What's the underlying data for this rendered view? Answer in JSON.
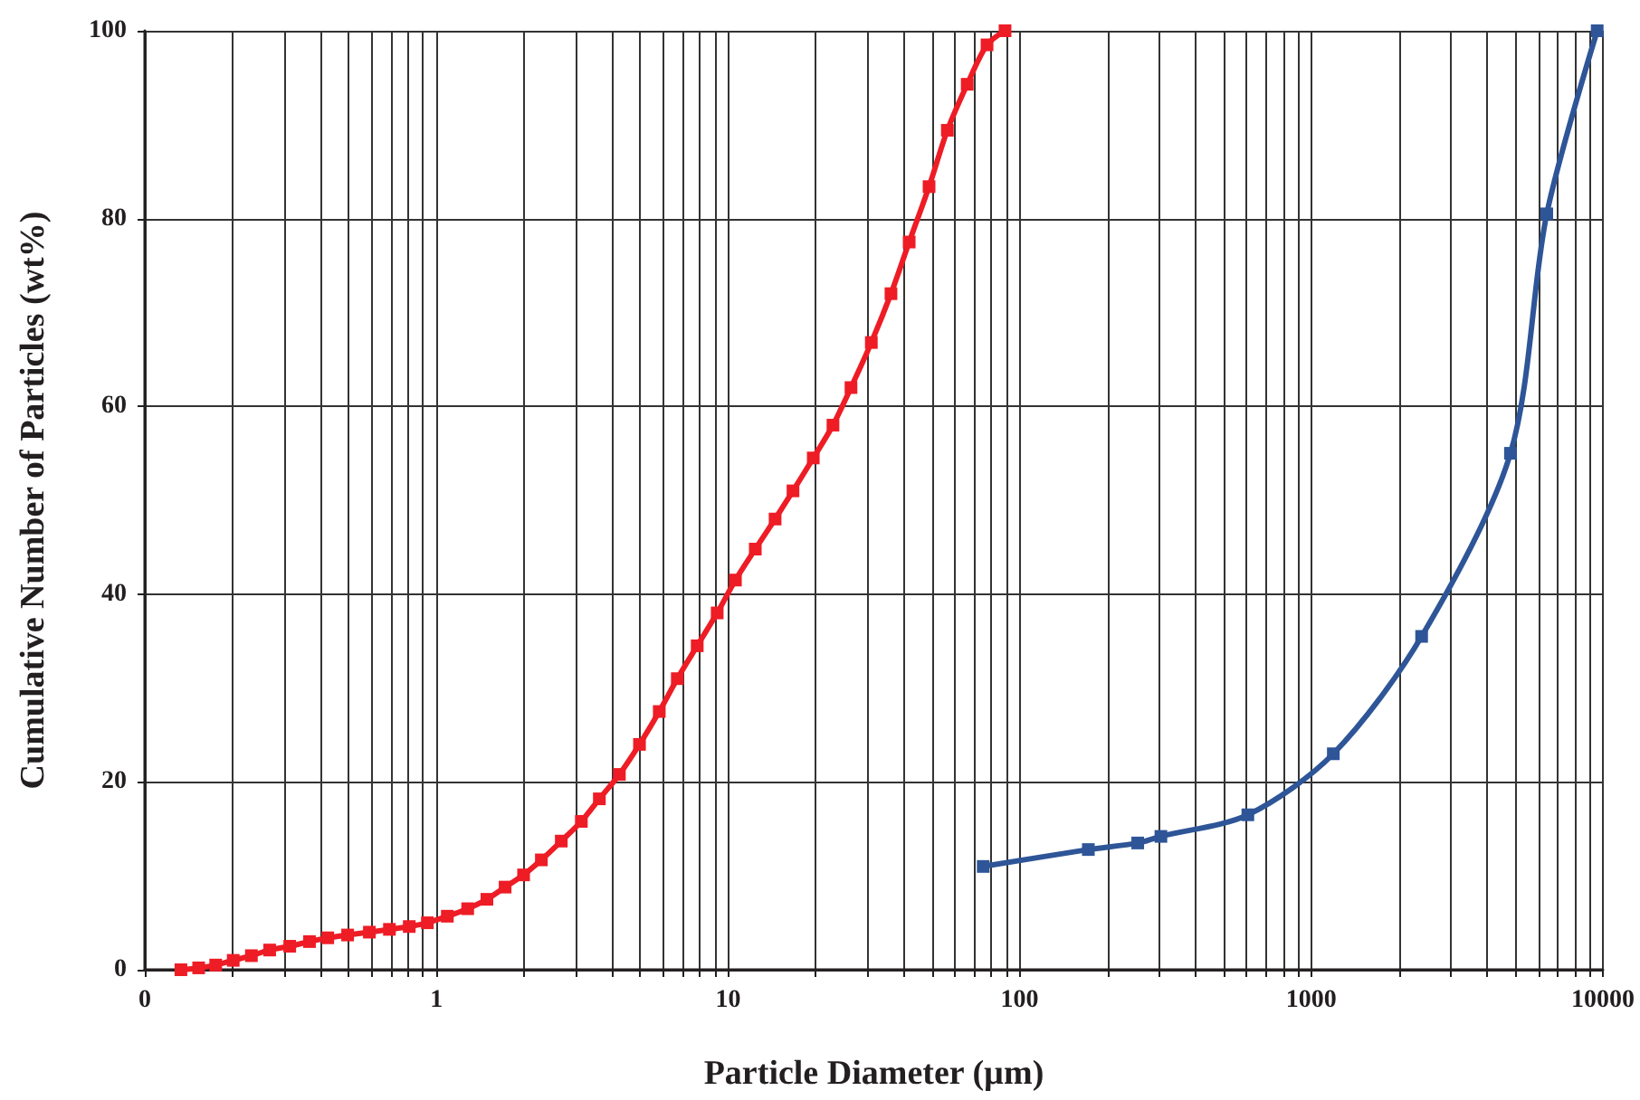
{
  "chart_data": {
    "type": "line",
    "xlabel": "Particle Diameter (µm)",
    "ylabel": "Cumulative Number of Particles (wt%)",
    "log": "x",
    "grid": true,
    "marker": "square",
    "line_style": "solid",
    "xlim": [
      0.1,
      10000
    ],
    "ylim": [
      0,
      100
    ],
    "yticks": [
      0,
      20,
      40,
      60,
      80,
      100
    ],
    "xticks": [
      {
        "value": 0.1,
        "label": "0"
      },
      {
        "value": 0.2,
        "label": null
      },
      {
        "value": 0.3,
        "label": null
      },
      {
        "value": 0.4,
        "label": null
      },
      {
        "value": 0.5,
        "label": null
      },
      {
        "value": 0.6,
        "label": null
      },
      {
        "value": 0.7,
        "label": null
      },
      {
        "value": 0.8,
        "label": null
      },
      {
        "value": 0.9,
        "label": null
      },
      1,
      {
        "value": 2,
        "label": null
      },
      {
        "value": 3,
        "label": null
      },
      {
        "value": 4,
        "label": null
      },
      {
        "value": 5,
        "label": null
      },
      {
        "value": 6,
        "label": null
      },
      {
        "value": 7,
        "label": null
      },
      {
        "value": 8,
        "label": null
      },
      {
        "value": 9,
        "label": null
      },
      10,
      {
        "value": 20,
        "label": null
      },
      {
        "value": 30,
        "label": null
      },
      {
        "value": 40,
        "label": null
      },
      {
        "value": 50,
        "label": null
      },
      {
        "value": 60,
        "label": null
      },
      {
        "value": 70,
        "label": null
      },
      {
        "value": 80,
        "label": null
      },
      {
        "value": 90,
        "label": null
      },
      100,
      {
        "value": 200,
        "label": null
      },
      {
        "value": 300,
        "label": null
      },
      {
        "value": 400,
        "label": null
      },
      {
        "value": 500,
        "label": null
      },
      {
        "value": 600,
        "label": null
      },
      {
        "value": 700,
        "label": null
      },
      {
        "value": 800,
        "label": null
      },
      {
        "value": 900,
        "label": null
      },
      1000,
      {
        "value": 2000,
        "label": null
      },
      {
        "value": 3000,
        "label": null
      },
      {
        "value": 4000,
        "label": null
      },
      {
        "value": 5000,
        "label": null
      },
      {
        "value": 6000,
        "label": null
      },
      {
        "value": 7000,
        "label": null
      },
      {
        "value": 8000,
        "label": null
      },
      {
        "value": 9000,
        "label": null
      },
      10000
    ],
    "series": [
      {
        "color": "#ee1c25",
        "x": [
          0.133,
          0.153,
          0.175,
          0.201,
          0.232,
          0.268,
          0.314,
          0.367,
          0.424,
          0.496,
          0.589,
          0.69,
          0.807,
          0.931,
          1.09,
          1.28,
          1.49,
          1.72,
          1.99,
          2.29,
          2.68,
          3.14,
          3.62,
          4.24,
          4.97,
          5.81,
          6.7,
          7.84,
          9.18,
          10.6,
          12.4,
          14.5,
          16.7,
          19.6,
          22.9,
          26.4,
          31,
          36.2,
          41.8,
          48.9,
          56.5,
          66.1,
          77.3,
          89.1
        ],
        "values": [
          0,
          0.2,
          0.5,
          1,
          1.5,
          2.1,
          2.5,
          3,
          3.4,
          3.7,
          4,
          4.3,
          4.6,
          5,
          5.7,
          6.5,
          7.5,
          8.8,
          10.1,
          11.7,
          13.7,
          15.8,
          18.2,
          20.8,
          24,
          27.5,
          31,
          34.5,
          38,
          41.5,
          44.8,
          48,
          51,
          54.5,
          58,
          62,
          66.8,
          72,
          77.5,
          83.4,
          89.4,
          94.3,
          98.5,
          100
        ]
      },
      {
        "color": "#2e5597",
        "x": [
          75,
          172,
          254,
          305,
          606,
          1190,
          2390,
          4820,
          6420,
          9560
        ],
        "values": [
          11,
          12.8,
          13.5,
          14.2,
          16.5,
          23,
          35.5,
          55,
          80.5,
          100
        ]
      }
    ]
  }
}
